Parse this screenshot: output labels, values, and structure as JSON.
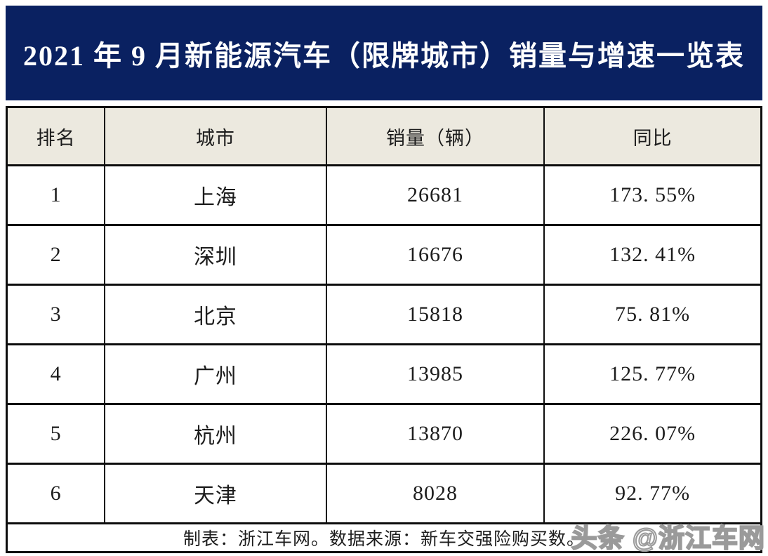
{
  "banner": {
    "title": "2021 年 9 月新能源汽车（限牌城市）销量与增速一览表"
  },
  "colors": {
    "banner_bg": "#0a2161",
    "banner_text": "#ffffff",
    "header_row_bg": "#ece9df",
    "data_row_bg": "#ffffff",
    "border": "#0d0d0d",
    "text": "#1c1c1c",
    "watermark_outline": "#9a9a9a"
  },
  "watermark": {
    "text": "头条 @浙江车网"
  },
  "chart_data": {
    "type": "table",
    "title": "2021 年 9 月新能源汽车（限牌城市）销量与增速一览表",
    "columns": [
      "排名",
      "城市",
      "销量（辆）",
      "同比"
    ],
    "rows": [
      [
        "1",
        "上海",
        "26681",
        "173. 55%"
      ],
      [
        "2",
        "深圳",
        "16676",
        "132. 41%"
      ],
      [
        "3",
        "北京",
        "15818",
        "75. 81%"
      ],
      [
        "4",
        "广州",
        "13985",
        "125. 77%"
      ],
      [
        "5",
        "杭州",
        "13870",
        "226. 07%"
      ],
      [
        "6",
        "天津",
        "8028",
        "92. 77%"
      ]
    ],
    "sales_values": [
      26681,
      16676,
      15818,
      13985,
      13870,
      8028
    ],
    "yoy_values_percent": [
      173.55,
      132.41,
      75.81,
      125.77,
      226.07,
      92.77
    ],
    "footer_note": "制表：浙江车网。数据来源：新车交强险购买数。"
  }
}
